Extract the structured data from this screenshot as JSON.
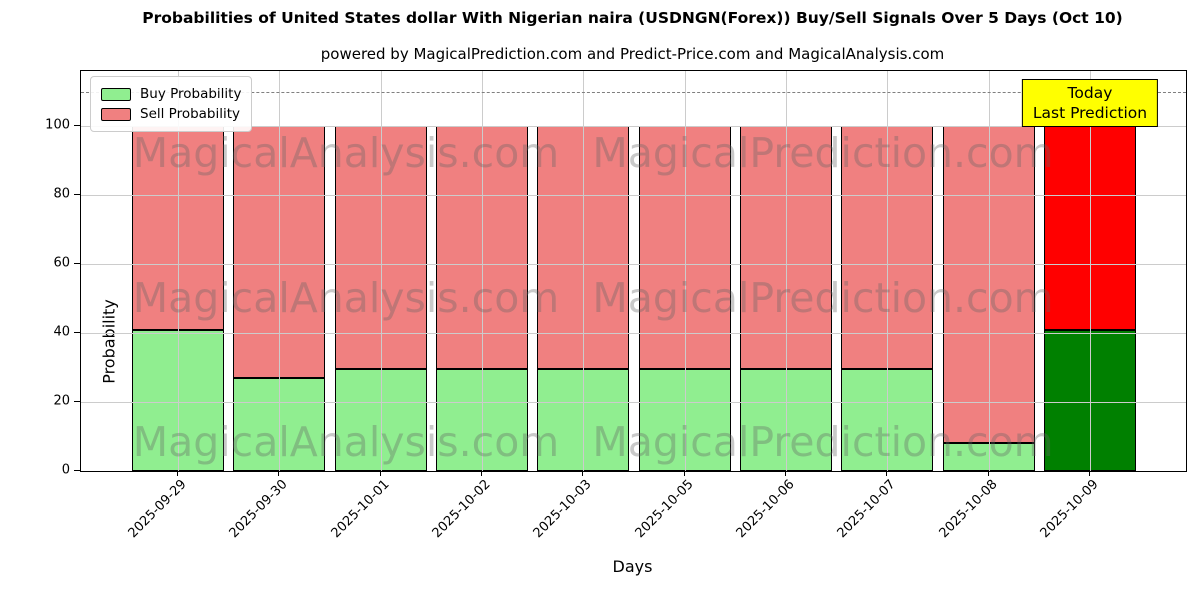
{
  "title": "Probabilities of United States dollar With Nigerian naira (USDNGN(Forex)) Buy/Sell Signals Over 5 Days (Oct 10)",
  "subtitle": "powered by MagicalPrediction.com and Predict-Price.com and MagicalAnalysis.com",
  "legend": {
    "buy_label": "Buy Probability",
    "sell_label": "Sell Probability"
  },
  "annotation": {
    "line1": "Today",
    "line2": "Last Prediction"
  },
  "axes": {
    "ylabel": "Probability",
    "xlabel": "Days",
    "yticks": [
      0,
      20,
      40,
      60,
      80,
      100
    ],
    "ylim": [
      0,
      116
    ],
    "dashed_line_y": 110
  },
  "watermarks": {
    "left_text": "MagicalAnalysis.com",
    "right_text": "MagicalPrediction.com"
  },
  "colors": {
    "buy": "#90ee90",
    "sell": "#f08080",
    "buy_today": "#008000",
    "sell_today": "#ff0000",
    "bar_edge": "#000000",
    "grid": "#cccccc",
    "dashed": "#7f7f7f",
    "annotation_bg": "#ffff00"
  },
  "chart_data": {
    "type": "bar",
    "stacked": true,
    "title": "Probabilities of United States dollar With Nigerian naira (USDNGN(Forex)) Buy/Sell Signals Over 5 Days (Oct 10)",
    "xlabel": "Days",
    "ylabel": "Probability",
    "ylim": [
      0,
      116
    ],
    "hline_dashed": 110,
    "grid": true,
    "legend_position": "upper left",
    "categories": [
      "2025-09-29",
      "2025-09-30",
      "2025-10-01",
      "2025-10-02",
      "2025-10-03",
      "2025-10-05",
      "2025-10-06",
      "2025-10-07",
      "2025-10-08",
      "2025-10-09"
    ],
    "series": [
      {
        "name": "Buy Probability",
        "values": [
          41,
          27,
          29.5,
          29.5,
          29.5,
          29.5,
          29.5,
          29.5,
          8,
          41
        ]
      },
      {
        "name": "Sell Probability",
        "values": [
          59,
          73,
          70.5,
          70.5,
          70.5,
          70.5,
          70.5,
          70.5,
          92,
          59
        ]
      }
    ],
    "today_index": 9,
    "today_annotation": "Today\nLast Prediction"
  }
}
